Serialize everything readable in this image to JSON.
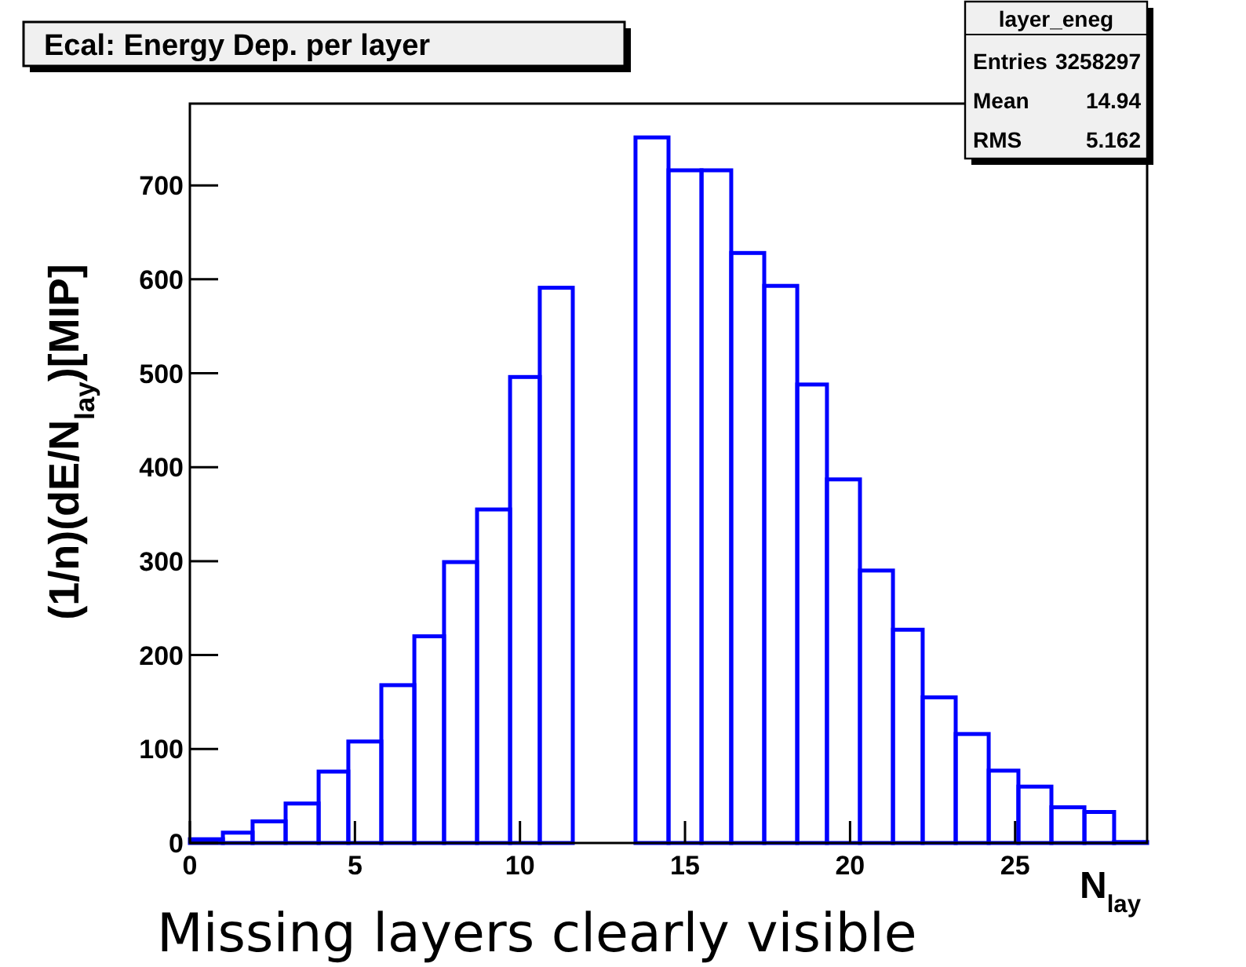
{
  "chart_data": {
    "type": "histogram",
    "title": "Ecal: Energy Dep. per layer",
    "xlabel": "N$_{lay}$",
    "ylabel": "(1/n)(dE/N$_{lay}$)[MIP]",
    "annotations": [
      "layer_eneg",
      "Entries 3258297",
      "Mean 14.94",
      "RMS 5.162",
      "Missing layers clearly visible"
    ],
    "bins": [
      0,
      1.0,
      1.9,
      2.9,
      3.9,
      4.8,
      5.8,
      6.8,
      7.7,
      8.7,
      9.7,
      10.6,
      11.6,
      13.5,
      14.5,
      15.5,
      16.4,
      17.4,
      18.4,
      19.3,
      20.3,
      21.3,
      22.2,
      23.2,
      24.2,
      25.1,
      26.1,
      27.1,
      28.0,
      29
    ],
    "values": [
      4,
      11,
      23,
      42,
      76,
      108,
      168,
      220,
      299,
      355,
      496,
      591,
      0,
      751,
      716,
      716,
      628,
      593,
      488,
      387,
      290,
      227,
      155,
      116,
      77,
      60,
      38,
      33,
      1
    ],
    "color": "#0000ff",
    "xlim": [
      0,
      29
    ],
    "xticks": [
      0,
      5,
      10,
      15,
      20,
      25
    ],
    "ylim": [
      0,
      787
    ],
    "yticks": [
      0,
      100,
      200,
      300,
      400,
      500,
      600,
      700
    ],
    "grid": false
  }
}
